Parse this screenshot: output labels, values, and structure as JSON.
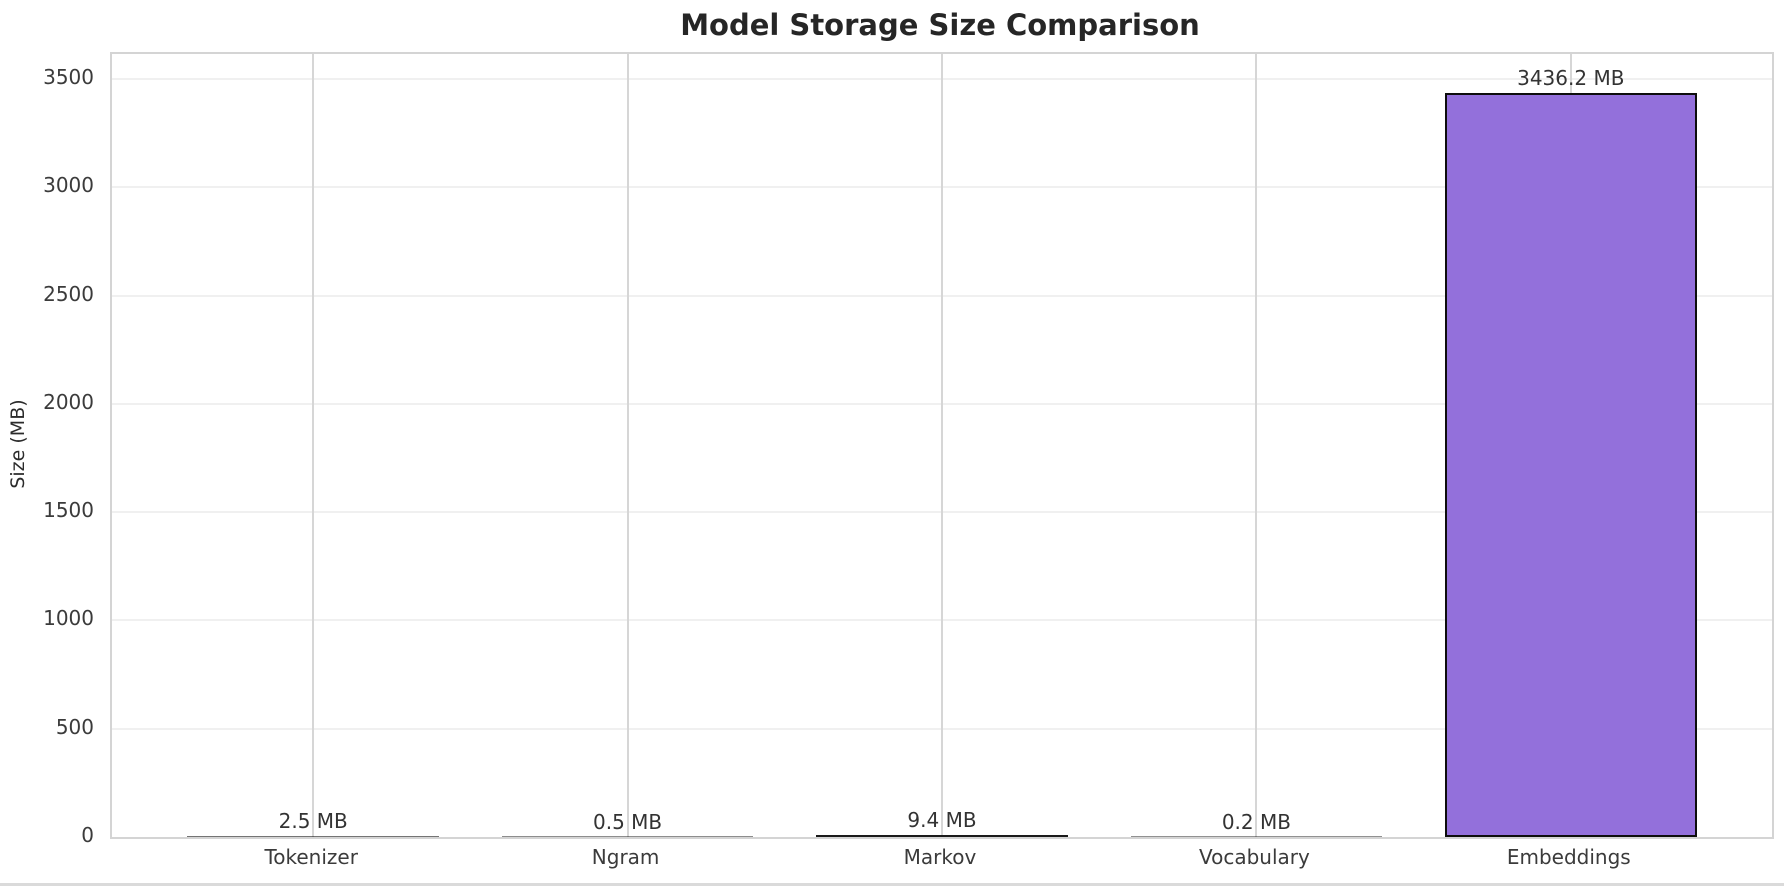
{
  "chart_data": {
    "type": "bar",
    "title": "Model Storage Size Comparison",
    "xlabel": "",
    "ylabel": "Size (MB)",
    "categories": [
      "Tokenizer",
      "Ngram",
      "Markov",
      "Vocabulary",
      "Embeddings"
    ],
    "values": [
      2.5,
      0.5,
      9.4,
      0.2,
      3436.2
    ],
    "value_labels": [
      "2.5 MB",
      "0.5 MB",
      "9.4 MB",
      "0.2 MB",
      "3436.2 MB"
    ],
    "unit": "MB",
    "y_ticks": [
      0,
      500,
      1000,
      1500,
      2000,
      2500,
      3000,
      3500
    ],
    "ylim": [
      0,
      3615
    ],
    "grid": true,
    "legend": null,
    "bar_color": "#9370DB",
    "bar_edge_color": "#0d0d0d"
  }
}
